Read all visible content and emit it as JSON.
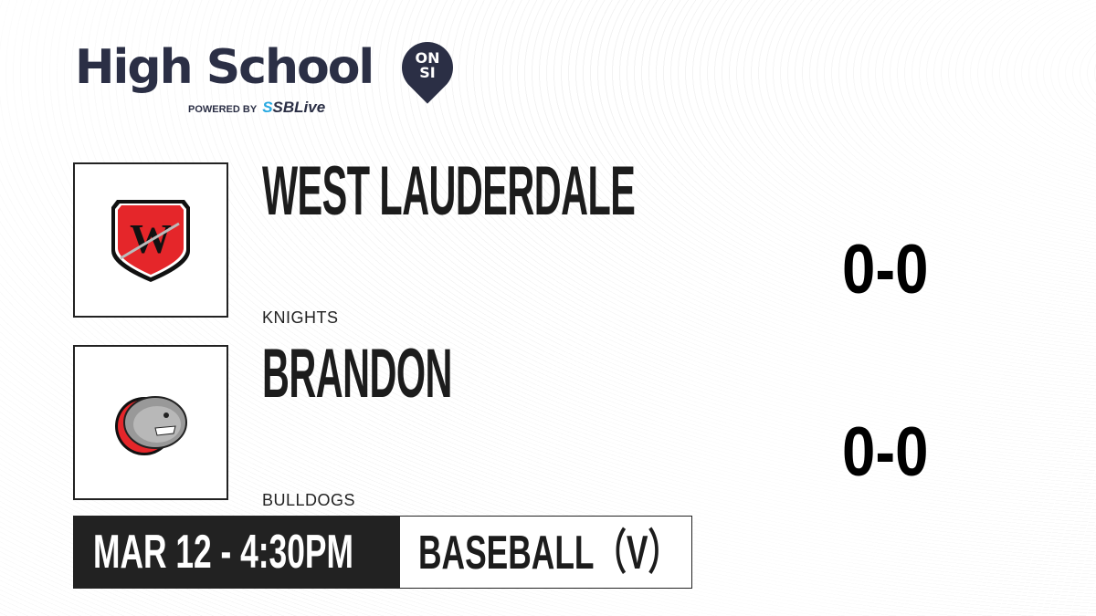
{
  "brand": {
    "title": "High School",
    "badge_line1": "ON",
    "badge_line2": "SI",
    "powered_by": "POWERED BY",
    "partner": "SBLive"
  },
  "teams": [
    {
      "name": "WEST LAUDERDALE",
      "mascot": "KNIGHTS",
      "score": "0-0",
      "logo": "shield-w-logo"
    },
    {
      "name": "BRANDON",
      "mascot": "BULLDOGS",
      "score": "0-0",
      "logo": "bulldog-logo"
    }
  ],
  "game": {
    "datetime": "MAR 12 - 4:30PM",
    "sport": "BASEBALL（V）"
  },
  "colors": {
    "brand_navy": "#2b2f45",
    "sblive_blue": "#28a9e1",
    "team_red": "#e5262a"
  }
}
